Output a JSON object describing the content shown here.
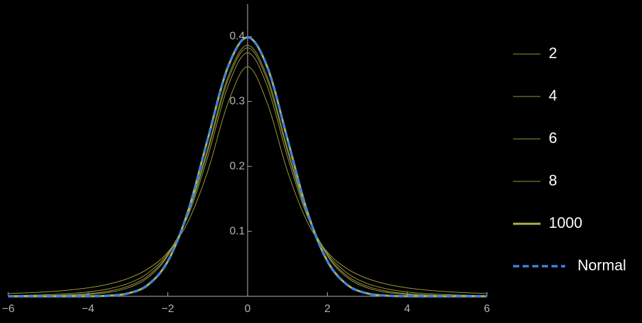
{
  "chart_data": {
    "type": "line",
    "x": [
      -6,
      -5.5,
      -5,
      -4.5,
      -4,
      -3.5,
      -3,
      -2.5,
      -2,
      -1.5,
      -1,
      -0.5,
      0,
      0.5,
      1,
      1.5,
      2,
      2.5,
      3,
      3.5,
      4,
      4.5,
      5,
      5.5,
      6
    ],
    "series": [
      {
        "name": "2",
        "color": "#9a9a3c",
        "line_width": 1,
        "values": [
          0.0043,
          0.0055,
          0.0071,
          0.0095,
          0.0131,
          0.0186,
          0.0274,
          0.0422,
          0.068,
          0.1141,
          0.1925,
          0.2963,
          0.3536,
          0.2963,
          0.1925,
          0.1141,
          0.068,
          0.0422,
          0.0274,
          0.0186,
          0.0131,
          0.0095,
          0.0071,
          0.0055,
          0.0043
        ]
      },
      {
        "name": "4",
        "color": "#9a9a3c",
        "line_width": 1,
        "values": [
          0.0012,
          0.0017,
          0.0026,
          0.0041,
          0.0067,
          0.0113,
          0.0197,
          0.0357,
          0.0663,
          0.1229,
          0.2147,
          0.3223,
          0.375,
          0.3223,
          0.2147,
          0.1229,
          0.0663,
          0.0357,
          0.0197,
          0.0113,
          0.0067,
          0.0041,
          0.0026,
          0.0017,
          0.0012
        ]
      },
      {
        "name": "6",
        "color": "#9a9a3c",
        "line_width": 1,
        "values": [
          0.0004,
          0.0007,
          0.0012,
          0.0022,
          0.0041,
          0.0078,
          0.0155,
          0.0315,
          0.064,
          0.1256,
          0.2231,
          0.3318,
          0.3827,
          0.3318,
          0.2231,
          0.1256,
          0.064,
          0.0315,
          0.0155,
          0.0078,
          0.0041,
          0.0022,
          0.0012,
          0.0007,
          0.0004
        ]
      },
      {
        "name": "8",
        "color": "#9a9a3c",
        "line_width": 1,
        "values": [
          0.0002,
          0.0003,
          0.0007,
          0.0013,
          0.0028,
          0.0059,
          0.013,
          0.0288,
          0.0624,
          0.1268,
          0.2276,
          0.3367,
          0.3867,
          0.3367,
          0.2276,
          0.1268,
          0.0624,
          0.0288,
          0.013,
          0.0059,
          0.0028,
          0.0013,
          0.0007,
          0.0003,
          0.0002
        ]
      },
      {
        "name": "1000",
        "color": "#b3b34a",
        "line_width": 3,
        "values": [
          0,
          0,
          0,
          0,
          0.0001,
          0.0009,
          0.0045,
          0.0176,
          0.0541,
          0.1296,
          0.242,
          0.352,
          0.3988,
          0.352,
          0.242,
          0.1296,
          0.0541,
          0.0176,
          0.0045,
          0.0009,
          0.0001,
          0,
          0,
          0,
          0
        ]
      },
      {
        "name": "Normal",
        "color": "#3d82e0",
        "line_width": 3.5,
        "dashed": true,
        "values": [
          0,
          0,
          0,
          0,
          0.0001,
          0.0009,
          0.0044,
          0.0175,
          0.054,
          0.1295,
          0.242,
          0.3521,
          0.3989,
          0.3521,
          0.242,
          0.1295,
          0.054,
          0.0175,
          0.0044,
          0.0009,
          0.0001,
          0,
          0,
          0,
          0
        ]
      }
    ],
    "xlim": [
      -6,
      6
    ],
    "ylim": [
      0,
      0.45
    ],
    "xticks": [
      {
        "value": -6,
        "label": "−6"
      },
      {
        "value": -4,
        "label": "−4"
      },
      {
        "value": -2,
        "label": "−2"
      },
      0,
      2,
      4,
      6
    ],
    "yticks": [
      0.1,
      0.2,
      0.3,
      0.4
    ],
    "legend": "right"
  }
}
